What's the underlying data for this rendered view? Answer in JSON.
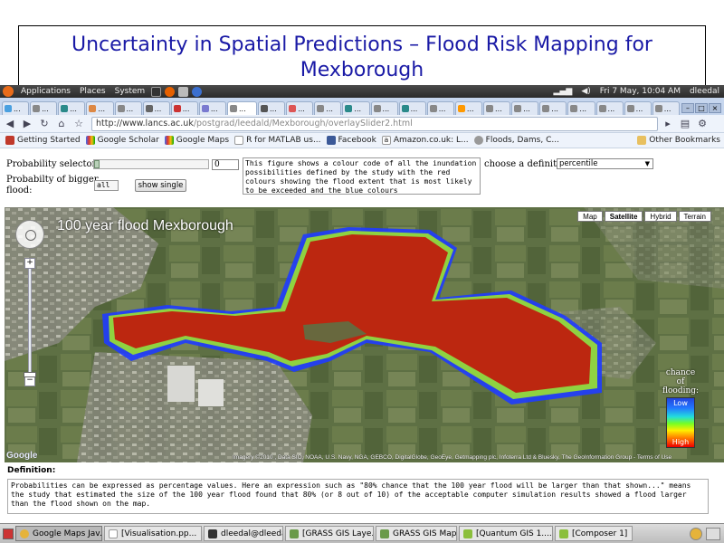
{
  "slide": {
    "title_line1": "Uncertainty in Spatial Predictions – Flood Risk Mapping for",
    "title_line2": "Mexborough"
  },
  "panel": {
    "menus": [
      "Applications",
      "Places",
      "System"
    ],
    "date_time": "Fri 7 May, 10:04 AM",
    "user": "dleedal"
  },
  "browser": {
    "tabs": [
      "...",
      "...",
      "...",
      "...",
      "...",
      "...",
      "...",
      "...",
      "...",
      "...",
      "...",
      "...",
      "...",
      "...",
      "...",
      "...",
      "...",
      "...",
      "...",
      "...",
      "...",
      "...",
      "...",
      "..."
    ],
    "url_host": "http://www.lancs.ac.uk",
    "url_path": "/postgrad/leedald/Mexborough/overlaySlider2.html",
    "bookmarks": [
      "Getting Started",
      "Google Scholar",
      "Google Maps",
      "R for MATLAB us...",
      "Facebook",
      "Amazon.co.uk: L...",
      "Floods, Dams, C..."
    ],
    "other_bookmarks": "Other Bookmarks"
  },
  "controls": {
    "probability_selector_label": "Probability selector:",
    "probability_value": "0",
    "probability_slider_fraction": 0.0,
    "bigger_flood_label_1": "Probabilty of bigger",
    "bigger_flood_label_2": "flood:",
    "all_select": "all",
    "show_single_button": "show single",
    "description": "This figure shows a colour code of all the inundation possibilities defined by the study with the red colours showing the flood extent that is most likely to be exceeded and the blue colours",
    "definition_label": "choose a definition:",
    "definition_value": "percentile"
  },
  "map": {
    "title": "100 year flood Mexborough",
    "map_types": [
      "Map",
      "Satellite",
      "Hybrid",
      "Terrain"
    ],
    "selected_map_type": "Satellite",
    "attribution": "Imagery ©2010 , Data SIO, NOAA, U.S. Navy, NGA, GEBCO, DigitalGlobe, GeoEye, Getmapping plc, Infoterra Ltd & Bluesky, The GeoInformation Group - Terms of Use",
    "google_logo": "Google",
    "legend_title_1": "chance of",
    "legend_title_2": "flooding:",
    "legend_low": "Low",
    "legend_high": "High",
    "colors": {
      "flood_red": "#c0180c",
      "flood_blue": "#1f3cff",
      "field_green": "#5e7044"
    }
  },
  "definition": {
    "label": "Definition:",
    "text": "Probabilities can be expressed as percentage values. Here an expression such as \"80% chance that the 100 year flood will be larger than that shown...\" means the study that estimated the size of the 100 year flood found that 80% (or 8 out of 10) of the acceptable computer simulation results showed a flood larger than the flood shown on the map."
  },
  "taskbar": {
    "tasks": [
      "Google Maps Jav...",
      "[Visualisation.pp...",
      "dleedal@dleedal...",
      "[GRASS GIS Laye...",
      "GRASS GIS Map ...",
      "[Quantum GIS 1....",
      "[Composer 1]"
    ]
  }
}
